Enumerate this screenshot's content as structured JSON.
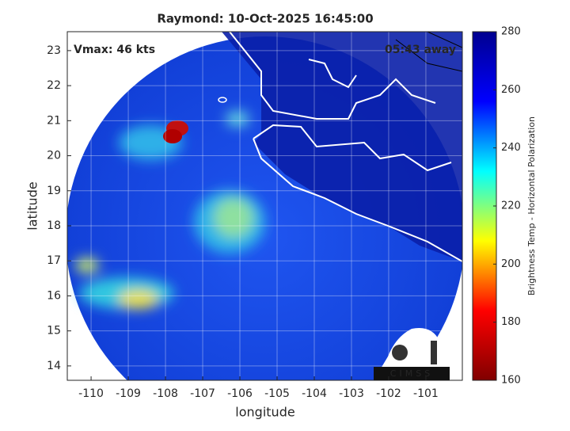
{
  "chart_data": {
    "type": "image-map",
    "title": "Raymond: 10-Oct-2025 16:45:00",
    "annotations": {
      "left": "Vmax: 46 kts",
      "right": "05:43 away"
    },
    "xlabel": "longitude",
    "ylabel": "latitude",
    "xlim": [
      -110.64,
      -100.02
    ],
    "ylim": [
      13.59,
      23.54
    ],
    "xticks": [
      -110,
      -109,
      -108,
      -107,
      -106,
      -105,
      -104,
      -103,
      -102,
      -101
    ],
    "yticks": [
      14,
      15,
      16,
      17,
      18,
      19,
      20,
      21,
      22,
      23
    ],
    "grid": true,
    "colorbar": {
      "label": "Brightness Temp - Horizontal Polarization",
      "lim": [
        160,
        280
      ],
      "ticks": [
        160,
        180,
        200,
        220,
        240,
        260,
        280
      ],
      "colormap": [
        "#800000",
        "#ff0000",
        "#ffff00",
        "#00ffff",
        "#0000ff",
        "#00008f"
      ]
    },
    "logo": "CIMSS"
  }
}
